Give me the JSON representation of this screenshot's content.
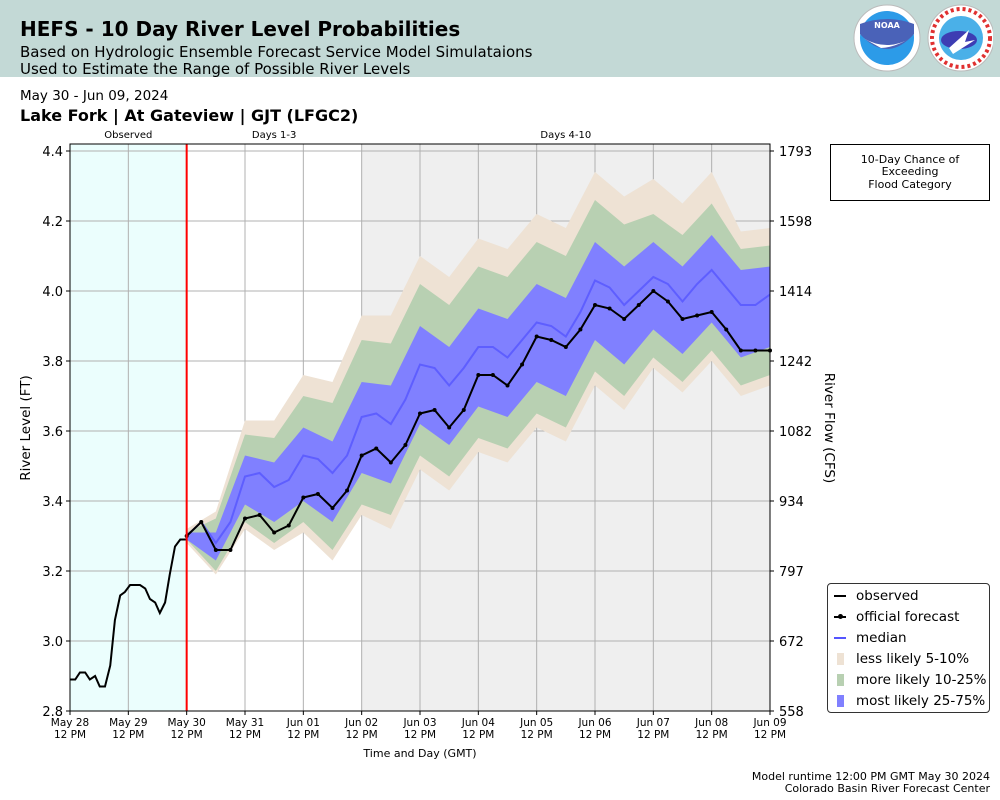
{
  "header": {
    "title": "HEFS - 10 Day River Level Probabilities",
    "subtitle_1": "Based on Hydrologic Ensemble Forecast Service Model Simulataions",
    "subtitle_2": "Used to Estimate the Range of Possible River Levels",
    "logos": [
      "NOAA",
      "NATIONAL WEATHER SERVICE"
    ]
  },
  "date_range": "May 30 - Jun 09, 2024",
  "location": "Lake Fork | At Gateview | GJT (LFGC2)",
  "flood_box": {
    "line1": "10-Day Chance of",
    "line2": "Exceeding",
    "line3": "Flood Category"
  },
  "footer": {
    "runtime": "Model runtime 12:00 PM GMT May 30 2024",
    "center": "Colorado Basin River Forecast Center"
  },
  "legend": [
    {
      "label": "observed"
    },
    {
      "label": "official forecast"
    },
    {
      "label": "median"
    },
    {
      "label": "less likely 5-10%"
    },
    {
      "label": "more likely 10-25%"
    },
    {
      "label": "most likely 25-75%"
    }
  ],
  "colors": {
    "observed": "#000000",
    "forecast": "#000000",
    "median": "#5555ff",
    "band_5_10": "#eee2d4",
    "band_10_25": "#b8d0b2",
    "band_25_75": "#8080ff",
    "observed_bg": "#ebfefd",
    "days4_10_bg": "#efefef",
    "now_line": "#ff0000",
    "header_bg": "#c3d9d6"
  },
  "chart_data": {
    "type": "area",
    "xlabel": "Time and Day (GMT)",
    "ylabel": "River Level (FT)",
    "ylabel_right": "River Flow (CFS)",
    "x_unit": "days since May 28 12 PM",
    "xlim": [
      0,
      12
    ],
    "ylim": [
      2.8,
      4.42
    ],
    "grid": true,
    "legend_position": "right",
    "regions": [
      {
        "label": "Observed",
        "from": 0,
        "to": 2
      },
      {
        "label": "Days 1-3",
        "from": 2,
        "to": 5
      },
      {
        "label": "Days 4-10",
        "from": 5,
        "to": 12
      }
    ],
    "now_x": 2,
    "x_ticks": [
      {
        "d": "May 28",
        "t": "12 PM"
      },
      {
        "d": "May 29",
        "t": "12 PM"
      },
      {
        "d": "May 30",
        "t": "12 PM"
      },
      {
        "d": "May 31",
        "t": "12 PM"
      },
      {
        "d": "Jun 01",
        "t": "12 PM"
      },
      {
        "d": "Jun 02",
        "t": "12 PM"
      },
      {
        "d": "Jun 03",
        "t": "12 PM"
      },
      {
        "d": "Jun 04",
        "t": "12 PM"
      },
      {
        "d": "Jun 05",
        "t": "12 PM"
      },
      {
        "d": "Jun 06",
        "t": "12 PM"
      },
      {
        "d": "Jun 07",
        "t": "12 PM"
      },
      {
        "d": "Jun 08",
        "t": "12 PM"
      },
      {
        "d": "Jun 09",
        "t": "12 PM"
      }
    ],
    "y_ticks": [
      "2.8",
      "3.0",
      "3.2",
      "3.4",
      "3.6",
      "3.8",
      "4.0",
      "4.2",
      "4.4"
    ],
    "y_ticks_right": [
      "558",
      "672",
      "797",
      "934",
      "1082",
      "1242",
      "1414",
      "1598",
      "1793"
    ],
    "observed": {
      "x": [
        0,
        0.09,
        0.17,
        0.26,
        0.34,
        0.43,
        0.51,
        0.6,
        0.69,
        0.77,
        0.86,
        0.94,
        1.03,
        1.2,
        1.29,
        1.37,
        1.46,
        1.54,
        1.63,
        1.71,
        1.8,
        1.89,
        2.0
      ],
      "y": [
        2.89,
        2.89,
        2.91,
        2.91,
        2.89,
        2.9,
        2.87,
        2.87,
        2.93,
        3.06,
        3.13,
        3.14,
        3.16,
        3.16,
        3.15,
        3.12,
        3.11,
        3.08,
        3.11,
        3.19,
        3.27,
        3.29,
        3.29
      ]
    },
    "forecast": {
      "x0": 2.0,
      "dx": 0.25,
      "y": [
        3.3,
        3.34,
        3.26,
        3.26,
        3.35,
        3.36,
        3.31,
        3.33,
        3.41,
        3.42,
        3.38,
        3.43,
        3.53,
        3.55,
        3.51,
        3.56,
        3.65,
        3.66,
        3.61,
        3.66,
        3.76,
        3.76,
        3.73,
        3.79,
        3.87,
        3.86,
        3.84,
        3.89,
        3.96,
        3.95,
        3.92,
        3.96,
        4.0,
        3.97,
        3.92,
        3.93,
        3.94,
        3.89,
        3.83,
        3.83,
        3.83
      ]
    },
    "median": {
      "x0": 2.0,
      "dx": 0.25,
      "y": [
        3.3,
        3.34,
        3.28,
        3.34,
        3.47,
        3.48,
        3.44,
        3.46,
        3.53,
        3.52,
        3.48,
        3.53,
        3.64,
        3.65,
        3.62,
        3.69,
        3.79,
        3.78,
        3.73,
        3.78,
        3.84,
        3.84,
        3.81,
        3.86,
        3.91,
        3.9,
        3.87,
        3.94,
        4.03,
        4.01,
        3.96,
        4.0,
        4.04,
        4.02,
        3.97,
        4.02,
        4.06,
        4.01,
        3.96,
        3.96,
        3.99
      ]
    },
    "percentiles": {
      "x0": 2.0,
      "dx": 0.5,
      "p95": [
        3.32,
        3.37,
        3.63,
        3.63,
        3.76,
        3.74,
        3.93,
        3.93,
        4.1,
        4.04,
        4.15,
        4.12,
        4.22,
        4.18,
        4.34,
        4.27,
        4.32,
        4.25,
        4.34,
        4.17,
        4.18
      ],
      "p90": [
        3.31,
        3.35,
        3.59,
        3.58,
        3.7,
        3.68,
        3.86,
        3.85,
        4.02,
        3.96,
        4.07,
        4.04,
        4.14,
        4.1,
        4.26,
        4.19,
        4.22,
        4.16,
        4.25,
        4.12,
        4.13
      ],
      "p75": [
        3.31,
        3.31,
        3.53,
        3.51,
        3.61,
        3.57,
        3.74,
        3.73,
        3.9,
        3.84,
        3.95,
        3.92,
        4.02,
        3.98,
        4.14,
        4.07,
        4.14,
        4.07,
        4.16,
        4.06,
        4.07
      ],
      "p25": [
        3.29,
        3.23,
        3.39,
        3.34,
        3.4,
        3.34,
        3.48,
        3.45,
        3.62,
        3.56,
        3.67,
        3.64,
        3.74,
        3.7,
        3.86,
        3.79,
        3.89,
        3.82,
        3.91,
        3.81,
        3.84
      ],
      "p10": [
        3.29,
        3.2,
        3.34,
        3.28,
        3.34,
        3.26,
        3.39,
        3.36,
        3.53,
        3.47,
        3.58,
        3.55,
        3.65,
        3.61,
        3.77,
        3.7,
        3.81,
        3.74,
        3.83,
        3.73,
        3.76
      ],
      "p5": [
        3.28,
        3.19,
        3.32,
        3.26,
        3.31,
        3.23,
        3.36,
        3.32,
        3.49,
        3.43,
        3.54,
        3.51,
        3.61,
        3.57,
        3.73,
        3.66,
        3.78,
        3.71,
        3.8,
        3.7,
        3.73
      ]
    }
  }
}
